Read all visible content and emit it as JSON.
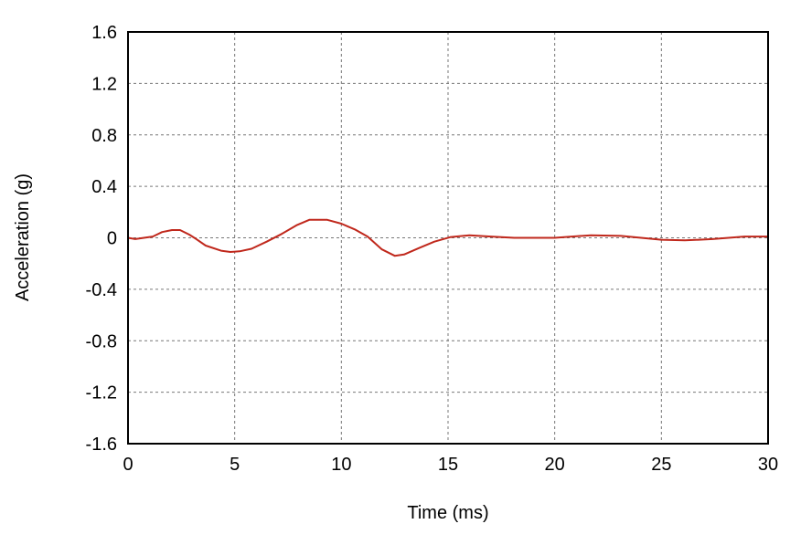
{
  "chart_data": {
    "type": "line",
    "title": "",
    "xlabel": "Time (ms)",
    "ylabel": "Acceleration (g)",
    "xlim": [
      0,
      30
    ],
    "ylim": [
      -1.6,
      1.6
    ],
    "xticks": [
      0,
      5,
      10,
      15,
      20,
      25,
      30
    ],
    "yticks": [
      1.6,
      1.2,
      0.8,
      0.4,
      0,
      -0.4,
      -0.8,
      -1.2,
      -1.6
    ],
    "grid": true,
    "series": [
      {
        "color": "#c0281c",
        "x": [
          0,
          0.34,
          1.16,
          1.6,
          2.06,
          2.44,
          2.87,
          3.2,
          3.64,
          4.36,
          4.8,
          5.23,
          5.79,
          6.5,
          7.2,
          7.93,
          8.5,
          9.34,
          10,
          10.63,
          11.23,
          11.9,
          12.5,
          12.94,
          13.63,
          14.36,
          15.1,
          16,
          17,
          18.1,
          20,
          21.7,
          23.1,
          25,
          26.1,
          27.4,
          28.9,
          30
        ],
        "y": [
          0,
          -0.01,
          0.01,
          0.045,
          0.06,
          0.06,
          0.025,
          -0.01,
          -0.06,
          -0.1,
          -0.11,
          -0.105,
          -0.085,
          -0.03,
          0.03,
          0.1,
          0.14,
          0.14,
          0.11,
          0.065,
          0.01,
          -0.09,
          -0.14,
          -0.13,
          -0.08,
          -0.03,
          0.005,
          0.02,
          0.01,
          0,
          0,
          0.02,
          0.015,
          -0.015,
          -0.02,
          -0.01,
          0.01,
          0.01
        ]
      }
    ]
  }
}
